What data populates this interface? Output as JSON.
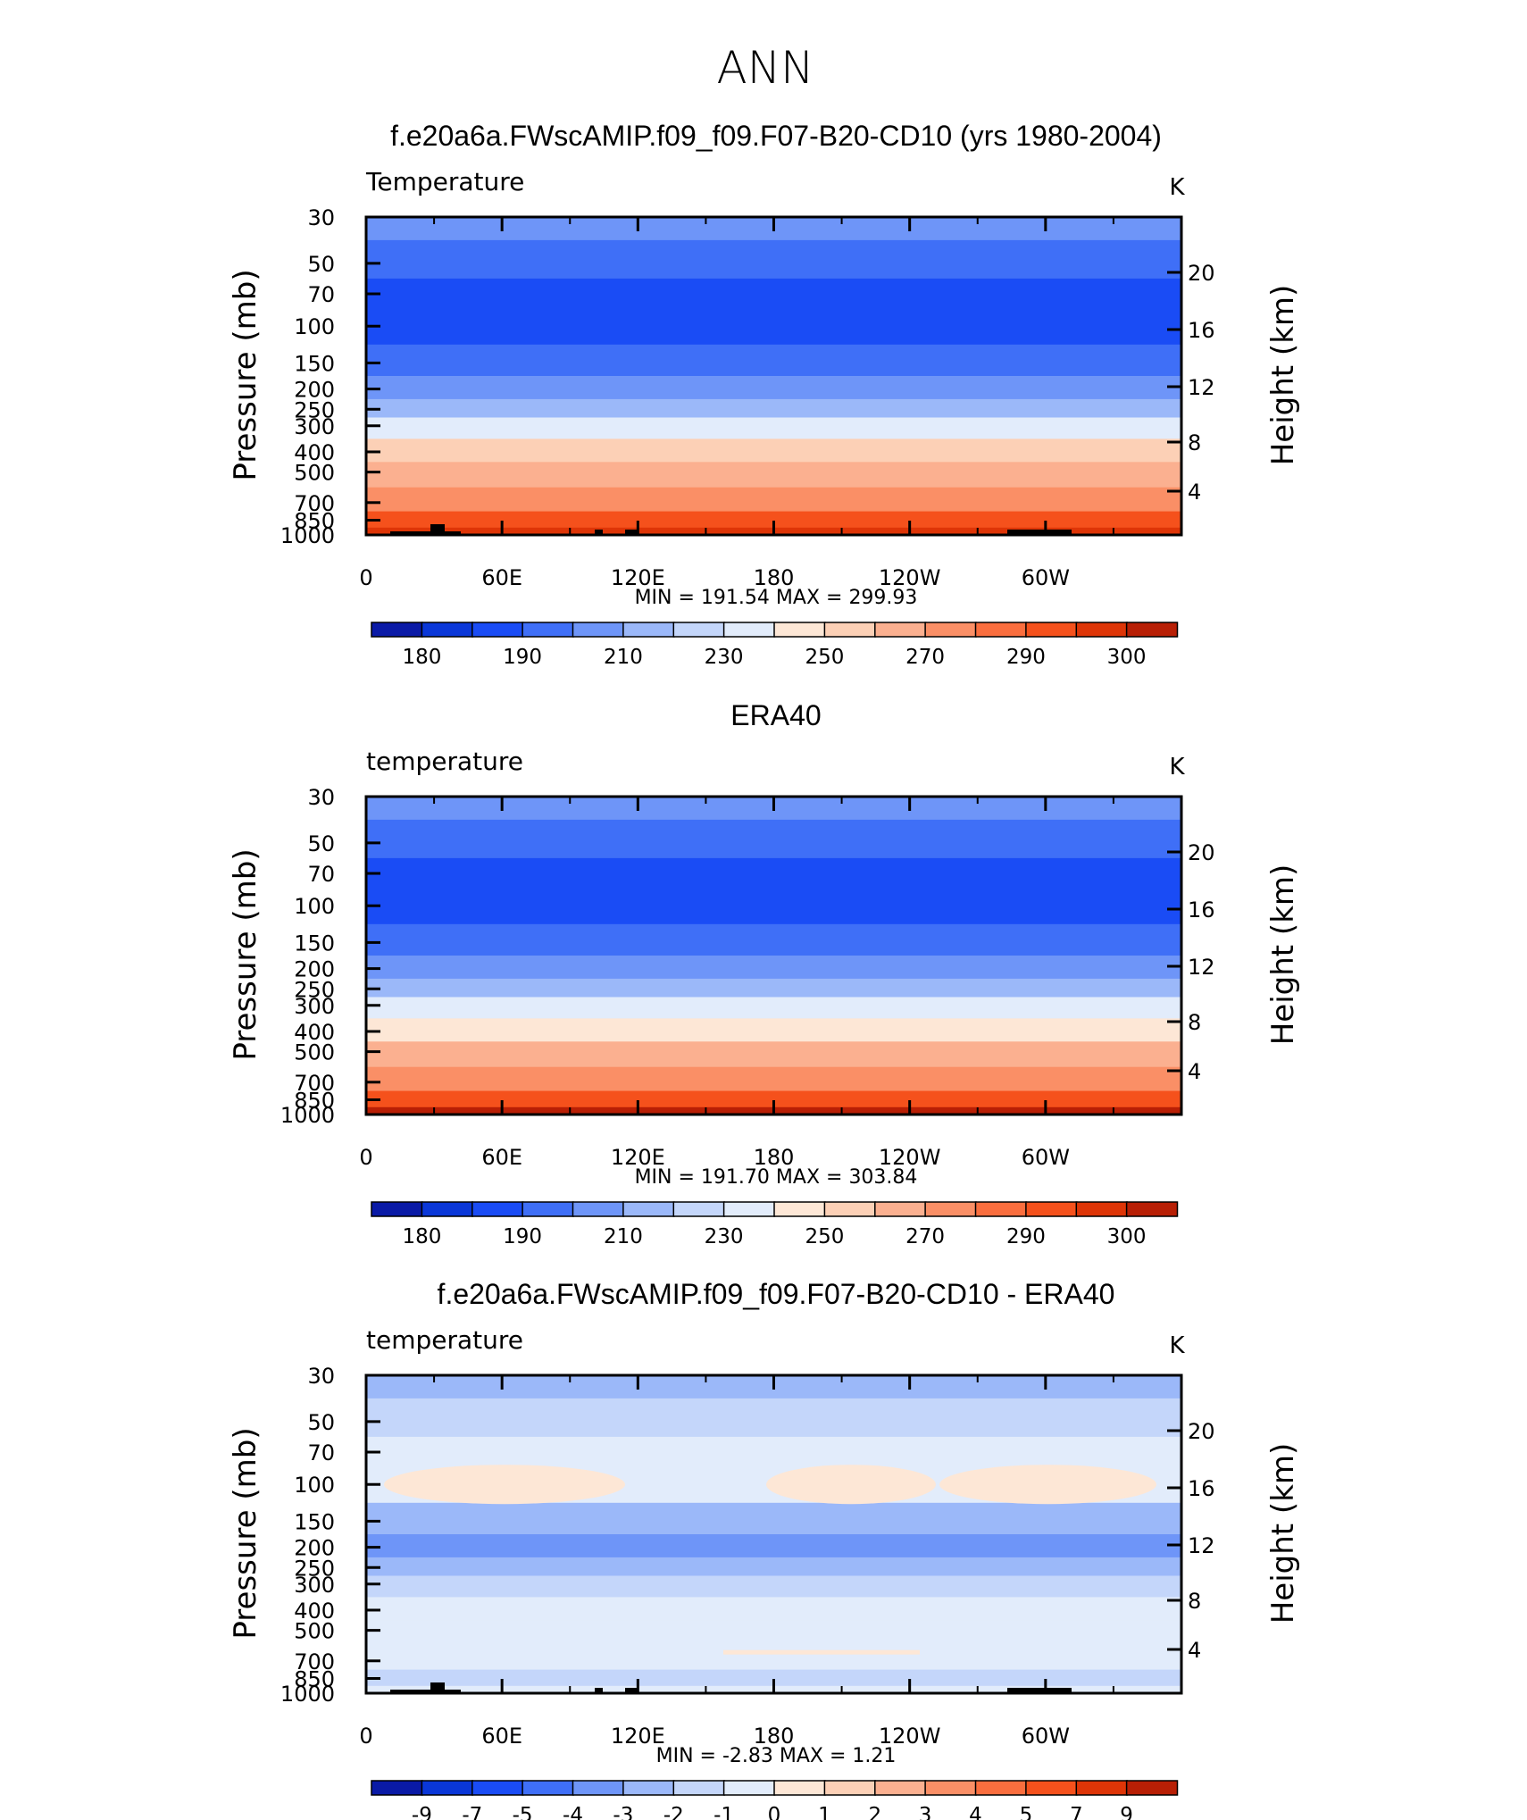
{
  "figure_title": "ANN",
  "colors": {
    "abs_palette": [
      "#08006a",
      "#0a1aa6",
      "#0a37d8",
      "#1a4cf5",
      "#3f6ff7",
      "#6e95f8",
      "#9bb8f9",
      "#c4d6fa",
      "#e2ecfb",
      "#fde7d6",
      "#fcd0b6",
      "#fbb090",
      "#fa8f66",
      "#fa6e3e",
      "#f5511c",
      "#de3507",
      "#b81f05",
      "#8b0a04"
    ],
    "diff_palette": [
      "#08006a",
      "#0a1aa6",
      "#0a37d8",
      "#1a4cf5",
      "#3f6ff7",
      "#6e95f8",
      "#9bb8f9",
      "#c4d6fa",
      "#e2ecfb",
      "#fde7d6",
      "#fcd0b6",
      "#fbb090",
      "#fa8f66",
      "#fa6e3e",
      "#f5511c",
      "#de3507",
      "#b81f05",
      "#8b0a04"
    ]
  },
  "chart_data": [
    {
      "type": "heatmap",
      "title": "f.e20a6a.FWscAMIP.f09_f09.F07-B20-CD10 (yrs 1980-2004)",
      "left_string": "Temperature",
      "right_string": "K",
      "ylabel": "Pressure (mb)",
      "y2label": "Height (km)",
      "y_ticks": [
        "30",
        "50",
        "70",
        "100",
        "150",
        "200",
        "250",
        "300",
        "400",
        "500",
        "700",
        "850",
        "1000"
      ],
      "y2_ticks": [
        "20",
        "16",
        "12",
        "8",
        "4"
      ],
      "x_ticks": [
        "0",
        "60E",
        "120E",
        "180",
        "120W",
        "60W"
      ],
      "stats": {
        "min_label": "MIN",
        "min": "191.54",
        "max_label": "MAX",
        "max": "299.93"
      },
      "colorbar_labels": [
        "180",
        "190",
        "210",
        "230",
        "250",
        "270",
        "290",
        "300"
      ],
      "levels_by_pressure": [
        {
          "p": 30,
          "band": 5
        },
        {
          "p": 50,
          "band": 4
        },
        {
          "p": 70,
          "band": 3
        },
        {
          "p": 100,
          "band": 3
        },
        {
          "p": 150,
          "band": 4
        },
        {
          "p": 200,
          "band": 5
        },
        {
          "p": 250,
          "band": 6
        },
        {
          "p": 300,
          "band": 8
        },
        {
          "p": 400,
          "band": 10
        },
        {
          "p": 500,
          "band": 11
        },
        {
          "p": 700,
          "band": 12
        },
        {
          "p": 850,
          "band": 14
        },
        {
          "p": 1000,
          "band": 15
        }
      ]
    },
    {
      "type": "heatmap",
      "title": "ERA40",
      "left_string": "temperature",
      "right_string": "K",
      "ylabel": "Pressure (mb)",
      "y2label": "Height (km)",
      "y_ticks": [
        "30",
        "50",
        "70",
        "100",
        "150",
        "200",
        "250",
        "300",
        "400",
        "500",
        "700",
        "850",
        "1000"
      ],
      "y2_ticks": [
        "20",
        "16",
        "12",
        "8",
        "4"
      ],
      "x_ticks": [
        "0",
        "60E",
        "120E",
        "180",
        "120W",
        "60W"
      ],
      "stats": {
        "min_label": "MIN",
        "min": "191.70",
        "max_label": "MAX",
        "max": "303.84"
      },
      "colorbar_labels": [
        "180",
        "190",
        "210",
        "230",
        "250",
        "270",
        "290",
        "300"
      ],
      "levels_by_pressure": [
        {
          "p": 30,
          "band": 5
        },
        {
          "p": 50,
          "band": 4
        },
        {
          "p": 70,
          "band": 3
        },
        {
          "p": 100,
          "band": 3
        },
        {
          "p": 150,
          "band": 4
        },
        {
          "p": 200,
          "band": 5
        },
        {
          "p": 250,
          "band": 6
        },
        {
          "p": 300,
          "band": 8
        },
        {
          "p": 400,
          "band": 9
        },
        {
          "p": 500,
          "band": 11
        },
        {
          "p": 700,
          "band": 12
        },
        {
          "p": 850,
          "band": 14
        },
        {
          "p": 1000,
          "band": 16
        }
      ]
    },
    {
      "type": "heatmap",
      "title": "f.e20a6a.FWscAMIP.f09_f09.F07-B20-CD10 - ERA40",
      "left_string": "temperature",
      "right_string": "K",
      "ylabel": "Pressure (mb)",
      "y2label": "Height (km)",
      "y_ticks": [
        "30",
        "50",
        "70",
        "100",
        "150",
        "200",
        "250",
        "300",
        "400",
        "500",
        "700",
        "850",
        "1000"
      ],
      "y2_ticks": [
        "20",
        "16",
        "12",
        "8",
        "4"
      ],
      "x_ticks": [
        "0",
        "60E",
        "120E",
        "180",
        "120W",
        "60W"
      ],
      "stats": {
        "min_label": "MIN",
        "min": "-2.83",
        "max_label": "MAX",
        "max": "1.21"
      },
      "colorbar_labels": [
        "-9",
        "-7",
        "-5",
        "-4",
        "-3",
        "-2",
        "-1",
        "0",
        "1",
        "2",
        "3",
        "4",
        "5",
        "7",
        "9"
      ],
      "levels_by_pressure": [
        {
          "p": 30,
          "band": 6
        },
        {
          "p": 50,
          "band": 7
        },
        {
          "p": 70,
          "band": 8
        },
        {
          "p": 100,
          "band": 8
        },
        {
          "p": 150,
          "band": 6
        },
        {
          "p": 200,
          "band": 5
        },
        {
          "p": 250,
          "band": 6
        },
        {
          "p": 300,
          "band": 7
        },
        {
          "p": 400,
          "band": 8
        },
        {
          "p": 500,
          "band": 8
        },
        {
          "p": 700,
          "band": 8
        },
        {
          "p": 850,
          "band": 7
        },
        {
          "p": 1000,
          "band": 8
        }
      ]
    }
  ]
}
